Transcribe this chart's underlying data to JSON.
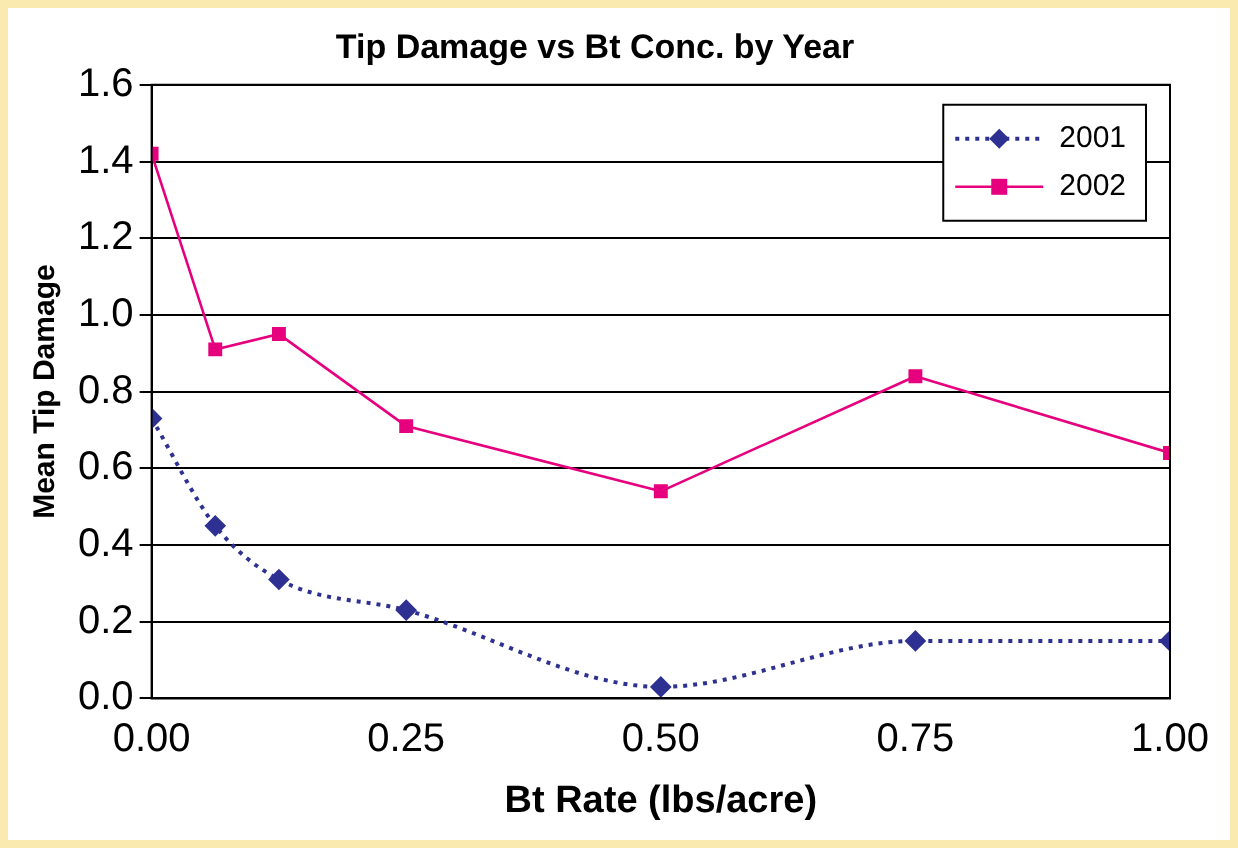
{
  "chart_data": {
    "type": "line",
    "title": "Tip Damage vs Bt Conc. by Year",
    "xlabel": "Bt Rate (lbs/acre)",
    "ylabel": "Mean Tip Damage",
    "x": [
      0,
      0.0625,
      0.125,
      0.25,
      0.5,
      0.75,
      1.0
    ],
    "series": [
      {
        "name": "2001",
        "color": "#2e3192",
        "values": [
          0.73,
          0.45,
          0.31,
          0.23,
          0.03,
          0.15,
          0.15
        ],
        "marker": "diamond",
        "line_style": "dotted"
      },
      {
        "name": "2002",
        "color": "#e6007e",
        "values": [
          1.42,
          0.91,
          0.95,
          0.71,
          0.54,
          0.84,
          0.64
        ],
        "marker": "square",
        "line_style": "solid"
      }
    ],
    "xlim": [
      0,
      1
    ],
    "xticks": [
      {
        "value": 0,
        "label": "0.00"
      },
      {
        "value": 0.25,
        "label": "0.25"
      },
      {
        "value": 0.5,
        "label": "0.50"
      },
      {
        "value": 0.75,
        "label": "0.75"
      },
      {
        "value": 1,
        "label": "1.00"
      }
    ],
    "ylim": [
      0,
      1.6
    ],
    "yticks": [
      {
        "value": 0,
        "label": "0.0"
      },
      {
        "value": 0.2,
        "label": "0.2"
      },
      {
        "value": 0.4,
        "label": "0.4"
      },
      {
        "value": 0.6,
        "label": "0.6"
      },
      {
        "value": 0.8,
        "label": "0.8"
      },
      {
        "value": 1,
        "label": "1.0"
      },
      {
        "value": 1.2,
        "label": "1.2"
      },
      {
        "value": 1.4,
        "label": "1.4"
      },
      {
        "value": 1.6,
        "label": "1.6"
      }
    ],
    "grid": "y",
    "legend": "top right"
  }
}
